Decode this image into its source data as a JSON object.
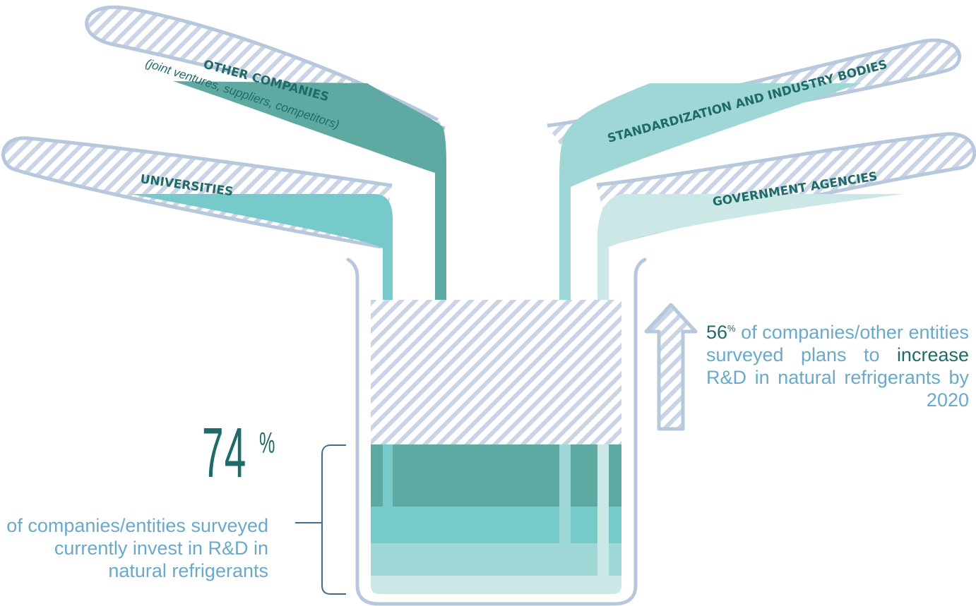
{
  "labels": {
    "other_companies": "OTHER COMPANIES",
    "other_companies_sub": "(joint ventures, suppliers, competitors)",
    "universities": "UNIVERSITIES",
    "standardization": "STANDARDIZATION AND INDUSTRY BODIES",
    "government": "GOVERNMENT AGENCIES"
  },
  "left_stat": {
    "value": "74",
    "unit": "%",
    "text": "of companies/entities surveyed currently invest in R&D in natural refrigerants"
  },
  "right_stat": {
    "value": "56",
    "unit": "%",
    "text_before": " of companies/other entities surveyed plans to ",
    "highlight": "increase",
    "text_after": " R&D in natural refrigerants by 2020"
  },
  "colors": {
    "outline": "#b8c8dc",
    "hatch": "#c9d5e5",
    "dark_teal": "#5ea9a2",
    "teal": "#76cbca",
    "light_teal": "#9fd6d6",
    "pale_teal": "#cbe8e6",
    "text_dark": "#1f6b69",
    "text_light": "#6aa9c9"
  }
}
